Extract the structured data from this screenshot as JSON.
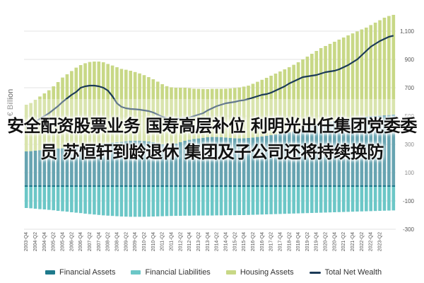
{
  "headline": "安全配资股票业务 国寿高层补位 利明光出任集团党委委员 苏恒轩到龄退休 集团及子公司还将持续换防",
  "chart_data": {
    "type": "bar",
    "ylabel": "€ Billion",
    "ylim": [
      -300,
      1200
    ],
    "yticks": [
      1100,
      900,
      700,
      500,
      300,
      100,
      -100,
      -300
    ],
    "ytick_labels": [
      "1,100",
      "900",
      "700",
      "500",
      "300",
      "100",
      "-100",
      "-300"
    ],
    "grid": true,
    "legend_position": "bottom",
    "x_tick_labels": [
      "2003-Q4",
      "2004-Q2",
      "2004-Q4",
      "2005-Q2",
      "2005-Q4",
      "2006-Q2",
      "2006-Q4",
      "2007-Q2",
      "2007-Q4",
      "2008-Q2",
      "2008-Q4",
      "2009-Q2",
      "2009-Q4",
      "2010-Q2",
      "2010-Q4",
      "2011-Q2",
      "2011-Q4",
      "2012-Q2",
      "2012-Q4",
      "2013-Q2",
      "2013-Q4",
      "2014-Q2",
      "2014-Q4",
      "2015-Q2",
      "2015-Q4",
      "2016-Q2",
      "2016-Q4",
      "2017-Q2",
      "2017-Q4",
      "2018-Q2",
      "2018-Q4",
      "2019-Q2",
      "2019-Q4",
      "2020-Q2",
      "2020-Q4",
      "2021-Q2",
      "2021-Q4",
      "2022-Q2",
      "2022-Q4",
      "2023-Q2"
    ],
    "x_start_year": 2003,
    "x_start_quarter": 3,
    "series": [
      {
        "name": "Financial Assets",
        "kind": "bar",
        "color": "#1f7a8c",
        "values": [
          250,
          252,
          255,
          258,
          260,
          262,
          265,
          270,
          272,
          275,
          278,
          282,
          285,
          288,
          292,
          295,
          300,
          305,
          308,
          312,
          315,
          318,
          322,
          325,
          326,
          326,
          324,
          320,
          315,
          308,
          300,
          296,
          298,
          305,
          315,
          325,
          332,
          338,
          342,
          346,
          350,
          352,
          352,
          350,
          348,
          345,
          343,
          342,
          343,
          345,
          348,
          352,
          356,
          360,
          365,
          370,
          375,
          380,
          385,
          392,
          400,
          410,
          420,
          430,
          440,
          450,
          455,
          460,
          465,
          470,
          475,
          480,
          484,
          488,
          492,
          495,
          498,
          500,
          502,
          505,
          507,
          510
        ]
      },
      {
        "name": "Financial Liabilities",
        "kind": "bar",
        "color": "#6cc7c7",
        "values": [
          -150,
          -152,
          -155,
          -158,
          -160,
          -163,
          -166,
          -170,
          -173,
          -176,
          -180,
          -183,
          -186,
          -190,
          -193,
          -196,
          -199,
          -202,
          -204,
          -206,
          -208,
          -210,
          -211,
          -212,
          -212,
          -212,
          -212,
          -211,
          -210,
          -209,
          -208,
          -207,
          -206,
          -205,
          -205,
          -204,
          -204,
          -203,
          -203,
          -203,
          -203,
          -203,
          -202,
          -202,
          -201,
          -201,
          -201,
          -200,
          -200,
          -199,
          -198,
          -197,
          -196,
          -195,
          -194,
          -193,
          -192,
          -191,
          -190,
          -189,
          -188,
          -187,
          -186,
          -185,
          -184,
          -183,
          -182,
          -181,
          -180,
          -179,
          -178,
          -177,
          -176,
          -175,
          -174,
          -173,
          -172,
          -171,
          -170,
          -169,
          -168,
          -167
        ]
      },
      {
        "name": "Housing Assets",
        "kind": "bar",
        "color": "#c8d886",
        "values": [
          330,
          340,
          360,
          380,
          400,
          420,
          445,
          470,
          500,
          520,
          540,
          560,
          575,
          585,
          590,
          590,
          585,
          575,
          560,
          545,
          530,
          515,
          505,
          495,
          485,
          475,
          465,
          455,
          445,
          435,
          425,
          415,
          405,
          395,
          385,
          375,
          365,
          355,
          350,
          345,
          340,
          340,
          340,
          342,
          345,
          350,
          355,
          360,
          365,
          370,
          380,
          390,
          400,
          410,
          420,
          430,
          440,
          450,
          460,
          470,
          480,
          490,
          500,
          510,
          520,
          530,
          540,
          550,
          560,
          570,
          580,
          590,
          600,
          610,
          620,
          630,
          645,
          660,
          675,
          690,
          700,
          705
        ]
      },
      {
        "name": "Total Net Wealth",
        "kind": "line",
        "color": "#1b3a57",
        "values": [
          420,
          440,
          460,
          480,
          500,
          520,
          545,
          570,
          600,
          625,
          650,
          670,
          700,
          710,
          715,
          715,
          710,
          700,
          680,
          640,
          590,
          565,
          555,
          550,
          548,
          545,
          540,
          535,
          525,
          510,
          495,
          485,
          480,
          480,
          480,
          485,
          490,
          500,
          510,
          520,
          540,
          555,
          570,
          580,
          590,
          595,
          600,
          608,
          612,
          620,
          630,
          640,
          650,
          655,
          665,
          680,
          695,
          710,
          730,
          745,
          760,
          775,
          780,
          785,
          790,
          800,
          810,
          815,
          820,
          830,
          845,
          860,
          880,
          900,
          930,
          960,
          990,
          1010,
          1030,
          1045,
          1060,
          1068
        ]
      }
    ]
  }
}
